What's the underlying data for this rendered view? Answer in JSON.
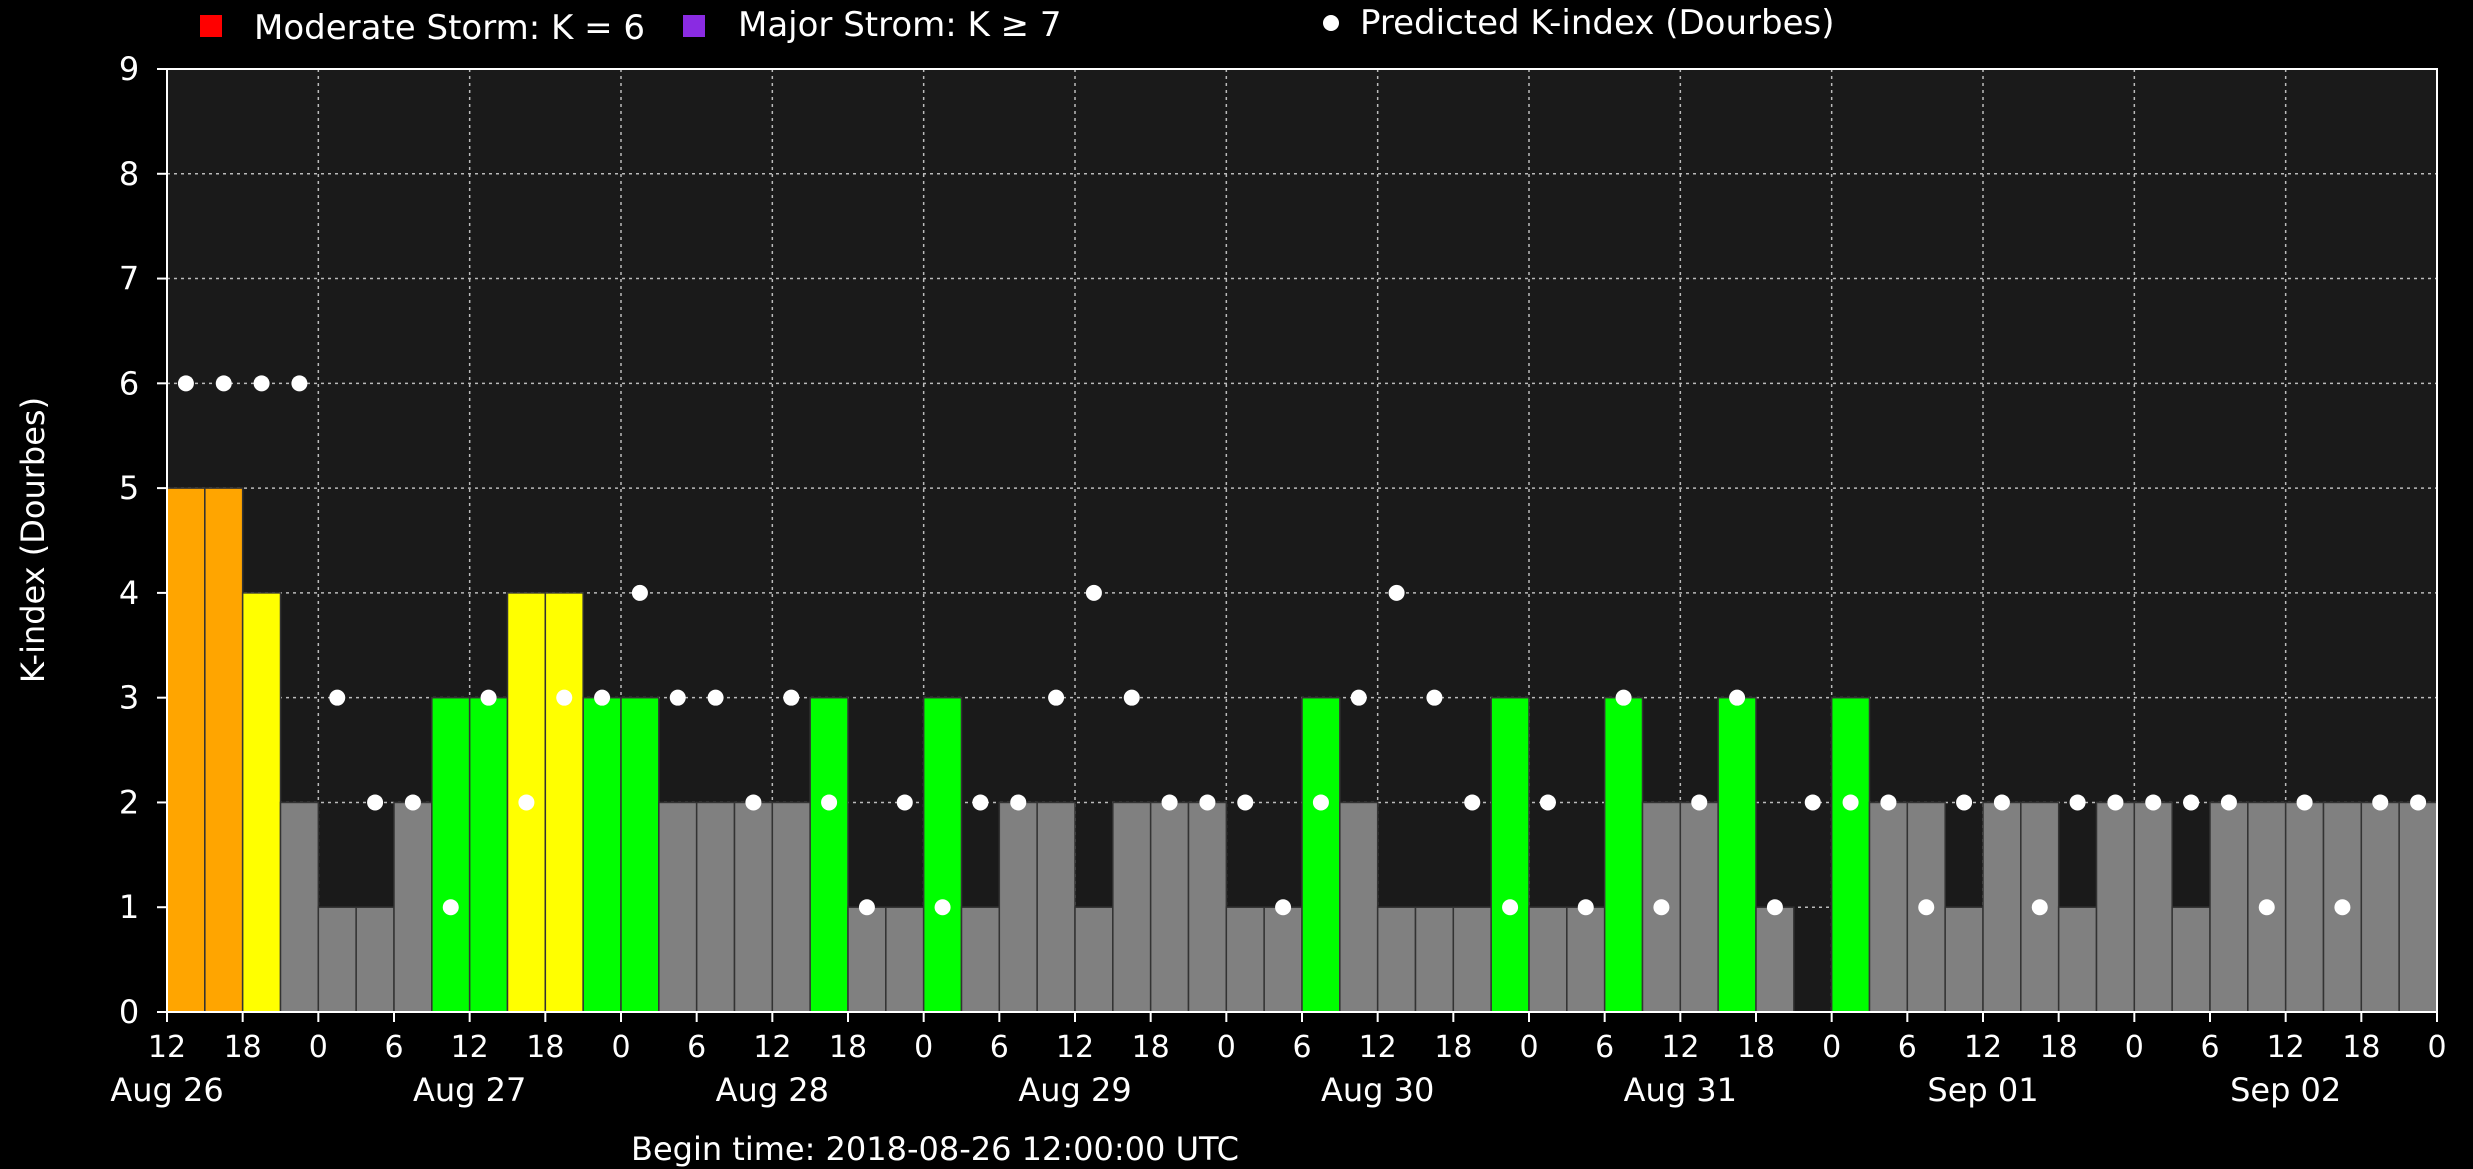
{
  "legend": [
    {
      "label": "Moderate Storm: K = 6",
      "color": "#ff0000",
      "marker": "square"
    },
    {
      "label": "Major Strom: K ≥ 7",
      "color": "#8a2be2",
      "marker": "square"
    },
    {
      "label": "Predicted K-index (Dourbes)",
      "color": "#ffffff",
      "marker": "circle"
    }
  ],
  "colors": {
    "background": "#000000",
    "plot_background": "#1a1a1a",
    "grid": "#bbbbbb",
    "quiet": "#808080",
    "unsettled": "#00ff00",
    "active": "#ffff00",
    "minor_storm": "#ffa500",
    "prediction": "#ffffff"
  },
  "chart_data": {
    "type": "bar",
    "title": "",
    "ylabel": "K-index (Dourbes)",
    "xlabel": "Begin time: 2018-08-26 12:00:00 UTC",
    "ylim": [
      0,
      9
    ],
    "yticks": [
      "0",
      "1",
      "2",
      "3",
      "4",
      "5",
      "6",
      "7",
      "8",
      "9"
    ],
    "x_unit": "hours since 2018-08-26 12:00 UTC",
    "x_range": [
      0,
      180
    ],
    "bar_width_hours": 3,
    "grid": true,
    "legend_position": "top",
    "hour_ticks": [
      {
        "x": 0,
        "label": "12"
      },
      {
        "x": 6,
        "label": "18"
      },
      {
        "x": 12,
        "label": "0"
      },
      {
        "x": 18,
        "label": "6"
      },
      {
        "x": 24,
        "label": "12"
      },
      {
        "x": 30,
        "label": "18"
      },
      {
        "x": 36,
        "label": "0"
      },
      {
        "x": 42,
        "label": "6"
      },
      {
        "x": 48,
        "label": "12"
      },
      {
        "x": 54,
        "label": "18"
      },
      {
        "x": 60,
        "label": "0"
      },
      {
        "x": 66,
        "label": "6"
      },
      {
        "x": 72,
        "label": "12"
      },
      {
        "x": 78,
        "label": "18"
      },
      {
        "x": 84,
        "label": "0"
      },
      {
        "x": 90,
        "label": "6"
      },
      {
        "x": 96,
        "label": "12"
      },
      {
        "x": 102,
        "label": "18"
      },
      {
        "x": 108,
        "label": "0"
      },
      {
        "x": 114,
        "label": "6"
      },
      {
        "x": 120,
        "label": "12"
      },
      {
        "x": 126,
        "label": "18"
      },
      {
        "x": 132,
        "label": "0"
      },
      {
        "x": 138,
        "label": "6"
      },
      {
        "x": 144,
        "label": "12"
      },
      {
        "x": 150,
        "label": "18"
      },
      {
        "x": 156,
        "label": "0"
      },
      {
        "x": 162,
        "label": "6"
      },
      {
        "x": 168,
        "label": "12"
      },
      {
        "x": 174,
        "label": "18"
      },
      {
        "x": 180,
        "label": "0"
      }
    ],
    "day_labels": [
      {
        "x": 0,
        "label": "Aug 26"
      },
      {
        "x": 24,
        "label": "Aug 27"
      },
      {
        "x": 48,
        "label": "Aug 28"
      },
      {
        "x": 72,
        "label": "Aug 29"
      },
      {
        "x": 96,
        "label": "Aug 30"
      },
      {
        "x": 120,
        "label": "Aug 31"
      },
      {
        "x": 144,
        "label": "Sep 01"
      },
      {
        "x": 168,
        "label": "Sep 02"
      }
    ],
    "series": [
      {
        "name": "K-index",
        "values": [
          5,
          5,
          4,
          2,
          1,
          1,
          2,
          3,
          3,
          4,
          4,
          3,
          3,
          2,
          2,
          2,
          2,
          3,
          1,
          1,
          3,
          1,
          2,
          2,
          1,
          2,
          2,
          2,
          1,
          1,
          3,
          2,
          1,
          1,
          1,
          3,
          1,
          1,
          3,
          2,
          2,
          3,
          1,
          0,
          3,
          2,
          2,
          1,
          2,
          2,
          1,
          2,
          2,
          1,
          2,
          2,
          2,
          2,
          2,
          2
        ]
      },
      {
        "name": "Predicted K-index (Dourbes)",
        "x": [
          1.5,
          4.5,
          7.5,
          10.5,
          13.5,
          16.5,
          19.5,
          22.5,
          25.5,
          28.5,
          31.5,
          34.5,
          37.5,
          40.5,
          43.5,
          46.5,
          49.5,
          52.5,
          55.5,
          58.5,
          61.5,
          64.5,
          67.5,
          70.5,
          73.5,
          76.5,
          79.5,
          82.5,
          85.5,
          88.5,
          91.5,
          94.5,
          97.5,
          100.5,
          103.5,
          106.5,
          109.5,
          112.5,
          115.5,
          118.5,
          121.5,
          124.5,
          127.5,
          130.5,
          133.5,
          136.5,
          139.5,
          142.5,
          145.5,
          148.5,
          151.5,
          154.5,
          157.5,
          160.5,
          163.5,
          166.5,
          169.5,
          172.5,
          175.5,
          178.5
        ],
        "values": [
          6,
          6,
          6,
          6,
          3,
          2,
          2,
          1,
          3,
          2,
          3,
          3,
          4,
          3,
          3,
          2,
          3,
          2,
          1,
          2,
          1,
          2,
          2,
          3,
          4,
          3,
          2,
          2,
          2,
          1,
          2,
          3,
          4,
          3,
          2,
          1,
          2,
          1,
          3,
          1,
          2,
          3,
          1,
          2,
          2,
          2,
          1,
          2,
          2,
          1,
          2,
          2,
          2,
          2,
          2,
          1,
          2,
          1,
          2,
          2
        ]
      }
    ]
  }
}
